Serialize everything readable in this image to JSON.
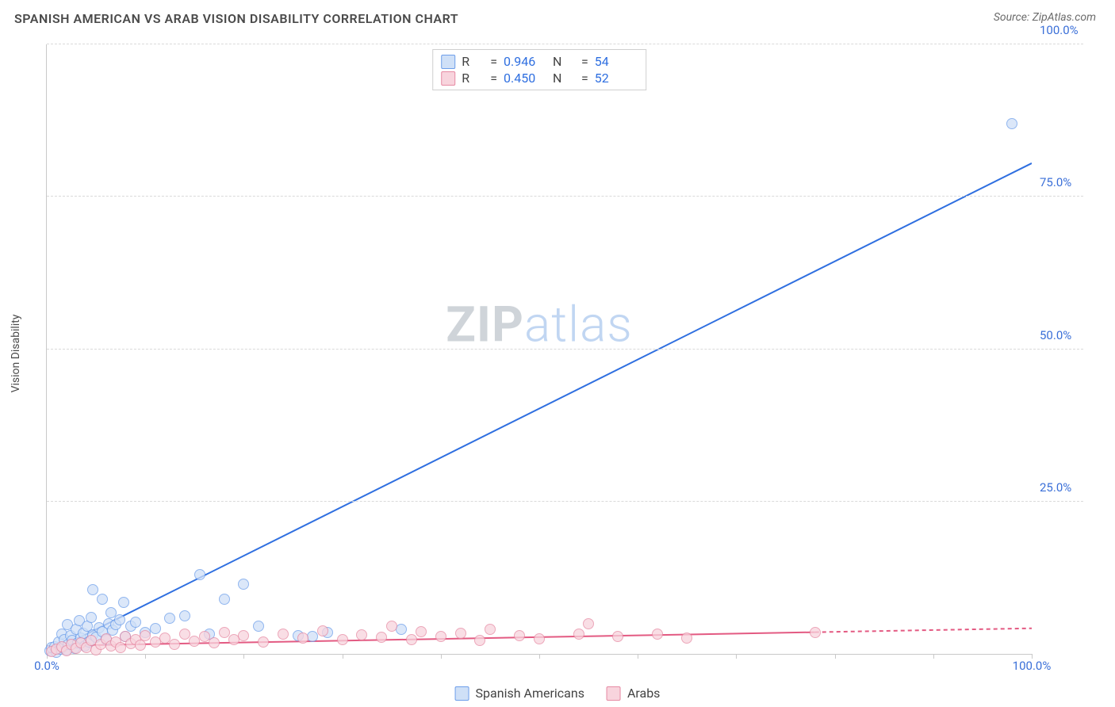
{
  "header": {
    "title": "SPANISH AMERICAN VS ARAB VISION DISABILITY CORRELATION CHART",
    "source": "Source: ZipAtlas.com"
  },
  "watermark": {
    "bold": "ZIP",
    "light": "atlas"
  },
  "chart": {
    "type": "scatter",
    "y_axis_title": "Vision Disability",
    "xlim": [
      0,
      100
    ],
    "ylim": [
      0,
      100
    ],
    "x_ticks": [
      0,
      10,
      20,
      30,
      40,
      50,
      60,
      70,
      80,
      90,
      100
    ],
    "x_tick_labels": {
      "0": "0.0%",
      "100": "100.0%"
    },
    "y_ticks": [
      25,
      50,
      75,
      100
    ],
    "y_tick_labels": {
      "25": "25.0%",
      "50": "50.0%",
      "75": "75.0%",
      "100": "100.0%"
    },
    "grid_color": "#d9d9d9",
    "axis_color": "#c9c9c9",
    "background_color": "#ffffff",
    "title_fontsize": 16,
    "label_fontsize": 14,
    "tick_fontsize": 15,
    "tick_color": "#3a6fd8",
    "legend_top": {
      "rows": [
        {
          "swatch_fill": "#cfe0f7",
          "swatch_border": "#6d9eea",
          "r_label": "R",
          "r_value": "0.946",
          "n_label": "N",
          "n_value": "54"
        },
        {
          "swatch_fill": "#f8d4dd",
          "swatch_border": "#e68aa3",
          "r_label": "R",
          "r_value": "0.450",
          "n_label": "N",
          "n_value": "52"
        }
      ]
    },
    "legend_bottom": {
      "items": [
        {
          "swatch_fill": "#cfe0f7",
          "swatch_border": "#6d9eea",
          "label": "Spanish Americans"
        },
        {
          "swatch_fill": "#f8d4dd",
          "swatch_border": "#e68aa3",
          "label": "Arabs"
        }
      ]
    },
    "series": [
      {
        "name": "Spanish Americans",
        "marker_fill": "#cfe0f7",
        "marker_border": "#6d9eea",
        "marker_radius": 7,
        "marker_opacity": 0.75,
        "trend": {
          "x1": 0,
          "y1": 0,
          "x2": 100,
          "y2": 80.5,
          "color": "#2f6fe0",
          "width": 2,
          "dash_after_x": null
        },
        "points": [
          [
            0.3,
            0.5
          ],
          [
            0.5,
            1.0
          ],
          [
            0.8,
            1.2
          ],
          [
            1.0,
            0.3
          ],
          [
            1.2,
            2.0
          ],
          [
            1.4,
            0.8
          ],
          [
            1.5,
            3.2
          ],
          [
            1.6,
            1.1
          ],
          [
            1.8,
            2.4
          ],
          [
            2.0,
            0.6
          ],
          [
            2.1,
            4.8
          ],
          [
            2.2,
            1.5
          ],
          [
            2.4,
            3.0
          ],
          [
            2.6,
            2.2
          ],
          [
            2.8,
            0.9
          ],
          [
            3.0,
            4.0
          ],
          [
            3.1,
            1.8
          ],
          [
            3.3,
            5.5
          ],
          [
            3.5,
            2.6
          ],
          [
            3.7,
            3.4
          ],
          [
            3.9,
            1.3
          ],
          [
            4.1,
            4.5
          ],
          [
            4.3,
            2.0
          ],
          [
            4.5,
            6.0
          ],
          [
            4.7,
            3.1
          ],
          [
            4.7,
            10.5
          ],
          [
            5.0,
            2.7
          ],
          [
            5.3,
            4.3
          ],
          [
            5.6,
            3.6
          ],
          [
            5.6,
            9.0
          ],
          [
            6.0,
            2.3
          ],
          [
            6.3,
            5.0
          ],
          [
            6.5,
            6.8
          ],
          [
            6.7,
            3.9
          ],
          [
            7.0,
            4.8
          ],
          [
            7.4,
            5.6
          ],
          [
            7.8,
            8.5
          ],
          [
            8.0,
            2.8
          ],
          [
            8.5,
            4.6
          ],
          [
            9.0,
            5.2
          ],
          [
            10.0,
            3.5
          ],
          [
            11.0,
            4.2
          ],
          [
            12.5,
            5.8
          ],
          [
            14.0,
            6.3
          ],
          [
            15.5,
            13.0
          ],
          [
            16.5,
            3.2
          ],
          [
            18.0,
            9.0
          ],
          [
            20.0,
            11.5
          ],
          [
            21.5,
            4.5
          ],
          [
            25.5,
            3.0
          ],
          [
            27.0,
            2.8
          ],
          [
            28.5,
            3.5
          ],
          [
            36.0,
            4.0
          ],
          [
            98.0,
            87.0
          ]
        ]
      },
      {
        "name": "Arabs",
        "marker_fill": "#f8d4dd",
        "marker_border": "#e68aa3",
        "marker_radius": 7,
        "marker_opacity": 0.75,
        "trend": {
          "x1": 0,
          "y1": 1.3,
          "x2": 100,
          "y2": 4.2,
          "color": "#e35a82",
          "width": 2,
          "dash_after_x": 78
        },
        "points": [
          [
            0.5,
            0.4
          ],
          [
            1.0,
            0.8
          ],
          [
            1.5,
            1.2
          ],
          [
            2.0,
            0.5
          ],
          [
            2.5,
            1.5
          ],
          [
            3.0,
            0.9
          ],
          [
            3.5,
            1.8
          ],
          [
            4.0,
            1.1
          ],
          [
            4.5,
            2.2
          ],
          [
            5.0,
            0.7
          ],
          [
            5.5,
            1.6
          ],
          [
            6.0,
            2.5
          ],
          [
            6.5,
            1.3
          ],
          [
            7.0,
            2.0
          ],
          [
            7.5,
            1.0
          ],
          [
            8.0,
            2.8
          ],
          [
            8.5,
            1.7
          ],
          [
            9.0,
            2.3
          ],
          [
            9.5,
            1.4
          ],
          [
            10.0,
            3.0
          ],
          [
            11.0,
            1.9
          ],
          [
            12.0,
            2.6
          ],
          [
            13.0,
            1.5
          ],
          [
            14.0,
            3.2
          ],
          [
            15.0,
            2.1
          ],
          [
            16.0,
            2.9
          ],
          [
            17.0,
            1.8
          ],
          [
            18.0,
            3.5
          ],
          [
            19.0,
            2.4
          ],
          [
            20.0,
            3.0
          ],
          [
            22.0,
            2.0
          ],
          [
            24.0,
            3.3
          ],
          [
            26.0,
            2.6
          ],
          [
            28.0,
            3.8
          ],
          [
            30.0,
            2.3
          ],
          [
            32.0,
            3.1
          ],
          [
            34.0,
            2.7
          ],
          [
            35.0,
            4.5
          ],
          [
            37.0,
            2.4
          ],
          [
            38.0,
            3.6
          ],
          [
            40.0,
            2.9
          ],
          [
            42.0,
            3.4
          ],
          [
            44.0,
            2.2
          ],
          [
            45.0,
            4.0
          ],
          [
            48.0,
            3.0
          ],
          [
            50.0,
            2.5
          ],
          [
            54.0,
            3.3
          ],
          [
            55.0,
            5.0
          ],
          [
            58.0,
            2.8
          ],
          [
            62.0,
            3.2
          ],
          [
            65.0,
            2.6
          ],
          [
            78.0,
            3.5
          ]
        ]
      }
    ]
  }
}
